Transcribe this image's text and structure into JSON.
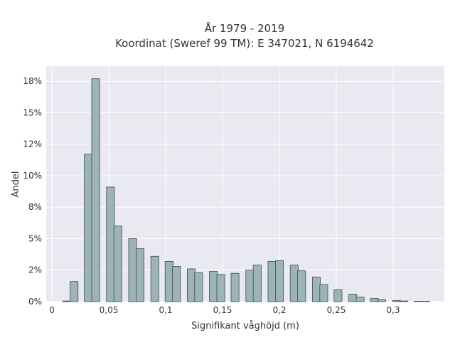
{
  "chart_data": {
    "type": "bar",
    "title_lines": [
      "År 1979 - 2019",
      "Koordinat (Sweref 99 TM): E 347021, N 6194642"
    ],
    "xlabel": "Signifikant våghöjd (m)",
    "ylabel": "Andel",
    "xlim": [
      -0.005,
      0.345
    ],
    "ylim": [
      0,
      0.187
    ],
    "bin_width": 0.007,
    "x_ticks": [
      {
        "value": 0,
        "label": "0"
      },
      {
        "value": 0.05,
        "label": "0,05"
      },
      {
        "value": 0.1,
        "label": "0,1"
      },
      {
        "value": 0.15,
        "label": "0,15"
      },
      {
        "value": 0.2,
        "label": "0,2"
      },
      {
        "value": 0.25,
        "label": "0,25"
      },
      {
        "value": 0.3,
        "label": "0,3"
      }
    ],
    "y_ticks": [
      {
        "value": 0,
        "label": "0%"
      },
      {
        "value": 0.025,
        "label": "2%"
      },
      {
        "value": 0.05,
        "label": "5%"
      },
      {
        "value": 0.075,
        "label": "8%"
      },
      {
        "value": 0.1,
        "label": "10%"
      },
      {
        "value": 0.125,
        "label": "12%"
      },
      {
        "value": 0.15,
        "label": "15%"
      },
      {
        "value": 0.175,
        "label": "18%"
      }
    ],
    "bins": [
      {
        "x": 0.013,
        "value": 0.0005
      },
      {
        "x": 0.0195,
        "value": 0.016
      },
      {
        "x": 0.032,
        "value": 0.117
      },
      {
        "x": 0.0385,
        "value": 0.177
      },
      {
        "x": 0.0515,
        "value": 0.091
      },
      {
        "x": 0.058,
        "value": 0.06
      },
      {
        "x": 0.071,
        "value": 0.05
      },
      {
        "x": 0.0775,
        "value": 0.042
      },
      {
        "x": 0.0905,
        "value": 0.036
      },
      {
        "x": 0.103,
        "value": 0.032
      },
      {
        "x": 0.1095,
        "value": 0.028
      },
      {
        "x": 0.1225,
        "value": 0.026
      },
      {
        "x": 0.129,
        "value": 0.023
      },
      {
        "x": 0.142,
        "value": 0.024
      },
      {
        "x": 0.1485,
        "value": 0.0215
      },
      {
        "x": 0.161,
        "value": 0.0225
      },
      {
        "x": 0.174,
        "value": 0.025
      },
      {
        "x": 0.1805,
        "value": 0.029
      },
      {
        "x": 0.1935,
        "value": 0.032
      },
      {
        "x": 0.2,
        "value": 0.0325
      },
      {
        "x": 0.213,
        "value": 0.029
      },
      {
        "x": 0.2195,
        "value": 0.0245
      },
      {
        "x": 0.2325,
        "value": 0.0195
      },
      {
        "x": 0.239,
        "value": 0.0135
      },
      {
        "x": 0.2515,
        "value": 0.0095
      },
      {
        "x": 0.2645,
        "value": 0.0058
      },
      {
        "x": 0.271,
        "value": 0.0035
      },
      {
        "x": 0.2835,
        "value": 0.0025
      },
      {
        "x": 0.29,
        "value": 0.0015
      },
      {
        "x": 0.303,
        "value": 0.0008
      },
      {
        "x": 0.3095,
        "value": 0.0005
      },
      {
        "x": 0.322,
        "value": 0.0003
      },
      {
        "x": 0.3285,
        "value": 0.0003
      }
    ],
    "colors": {
      "bar_fill": "#9cb4b6",
      "bar_stroke": "#3f4a4a",
      "plot_bg": "#e9e9f1",
      "grid": "#ffffff"
    },
    "grid": true,
    "legend": "none"
  }
}
